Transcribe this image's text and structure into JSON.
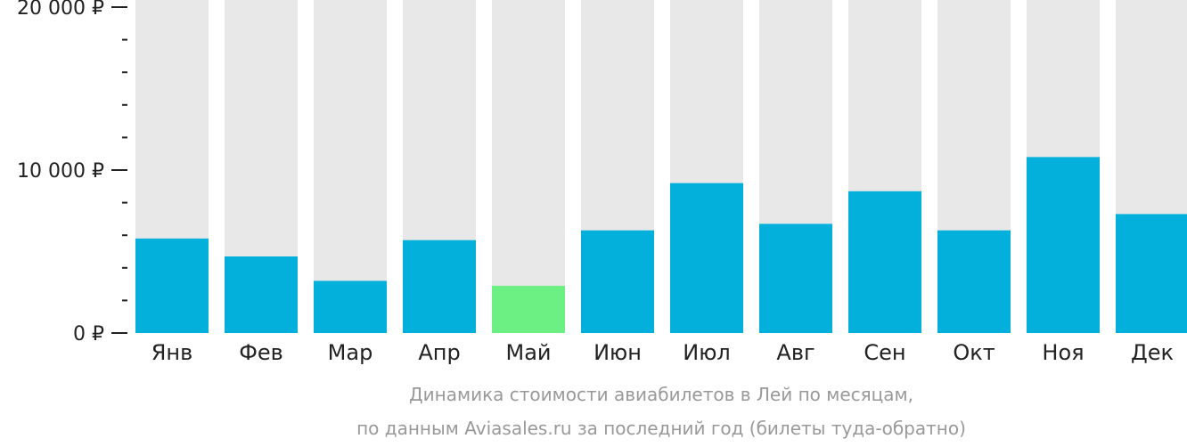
{
  "chart_data": {
    "type": "bar",
    "categories": [
      "Янв",
      "Фев",
      "Мар",
      "Апр",
      "Май",
      "Июн",
      "Июл",
      "Авг",
      "Сен",
      "Окт",
      "Ноя",
      "Дек"
    ],
    "values": [
      5800,
      4700,
      3200,
      5700,
      2900,
      6300,
      9200,
      6700,
      8700,
      6300,
      10800,
      7300
    ],
    "highlight_index": 4,
    "ylim": [
      0,
      20000
    ],
    "yticks": [
      {
        "value": 0,
        "label": "0 ₽"
      },
      {
        "value": 10000,
        "label": "10 000 ₽"
      },
      {
        "value": 20000,
        "label": "20 000 ₽"
      }
    ],
    "minor_tick_step": 2000,
    "title": "",
    "xlabel": "",
    "ylabel": "",
    "grid": false,
    "caption_lines": [
      "Динамика стоимости авиабилетов в Лей по месяцам,",
      "по данным Aviasales.ru за последний год (билеты туда-обратно)"
    ],
    "colors": {
      "bar": "#03b0dc",
      "highlight": "#6cf083",
      "track": "#e8e8e8",
      "axis": "#222222",
      "caption": "#999999"
    }
  }
}
